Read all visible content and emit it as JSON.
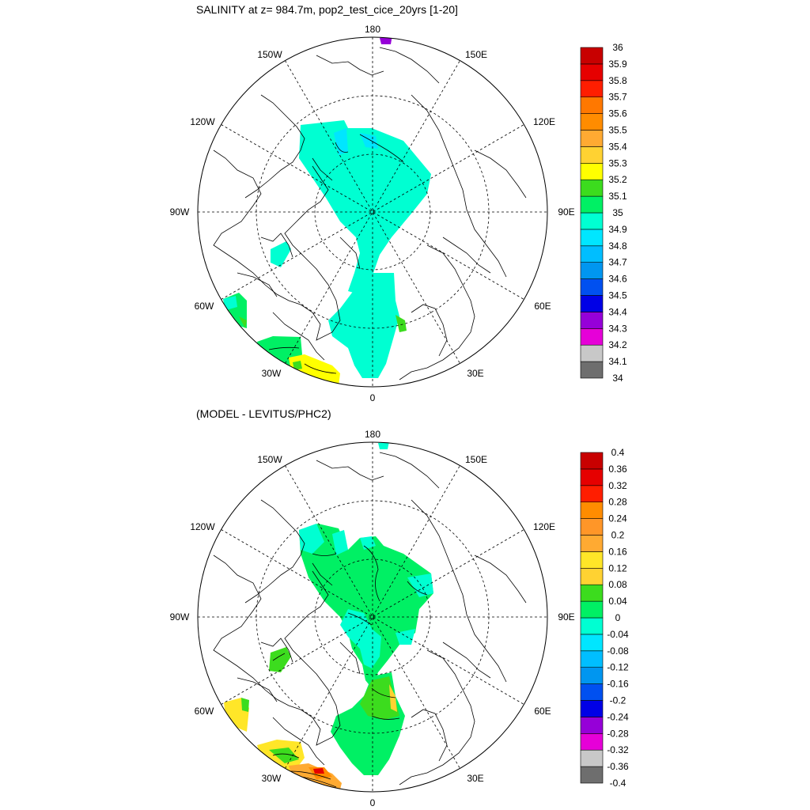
{
  "panels": [
    {
      "title": "SALINITY at z= 984.7m, pop2_test_cice_20yrs [1-20]",
      "lon_labels": [
        "180",
        "150E",
        "120E",
        "90E",
        "60E",
        "30E",
        "0",
        "30W",
        "60W",
        "90W",
        "120W",
        "150W"
      ],
      "colorbar": {
        "colors": [
          "#6e6e6e",
          "#c8c8c8",
          "#e600d8",
          "#9600d8",
          "#0000e6",
          "#0050f0",
          "#0096f0",
          "#00beff",
          "#00e6ff",
          "#00ffd2",
          "#00f064",
          "#3cdc1e",
          "#ffff00",
          "#ffd232",
          "#ffaa32",
          "#ff8c00",
          "#ff7800",
          "#ff1e00",
          "#e60000",
          "#c80000"
        ],
        "labels": [
          "34",
          "34.1",
          "34.2",
          "34.3",
          "34.4",
          "34.5",
          "34.6",
          "34.7",
          "34.8",
          "34.9",
          "35",
          "35.1",
          "35.2",
          "35.3",
          "35.4",
          "35.5",
          "35.6",
          "35.7",
          "35.8",
          "35.9",
          "36"
        ]
      }
    },
    {
      "title": "(MODEL - LEVITUS/PHC2)",
      "lon_labels": [
        "180",
        "150E",
        "120E",
        "90E",
        "60E",
        "30E",
        "0",
        "30W",
        "60W",
        "90W",
        "120W",
        "150W"
      ],
      "colorbar": {
        "colors": [
          "#6e6e6e",
          "#c8c8c8",
          "#e600d8",
          "#9600d8",
          "#0000e6",
          "#0050f0",
          "#0096f0",
          "#00beff",
          "#00e6ff",
          "#00ffd2",
          "#00f064",
          "#3cdc1e",
          "#ffd232",
          "#ffe628",
          "#ffaa32",
          "#ff9628",
          "#ff8c00",
          "#ff1e00",
          "#e60000",
          "#c80000"
        ],
        "labels": [
          "-0.4",
          "-0.36",
          "-0.32",
          "-0.28",
          "-0.24",
          "-0.2",
          "-0.16",
          "-0.12",
          "-0.08",
          "-0.04",
          "0",
          "0.04",
          "0.08",
          "0.12",
          "0.16",
          "0.2",
          "0.24",
          "0.28",
          "0.32",
          "0.36",
          "0.4"
        ]
      }
    }
  ]
}
